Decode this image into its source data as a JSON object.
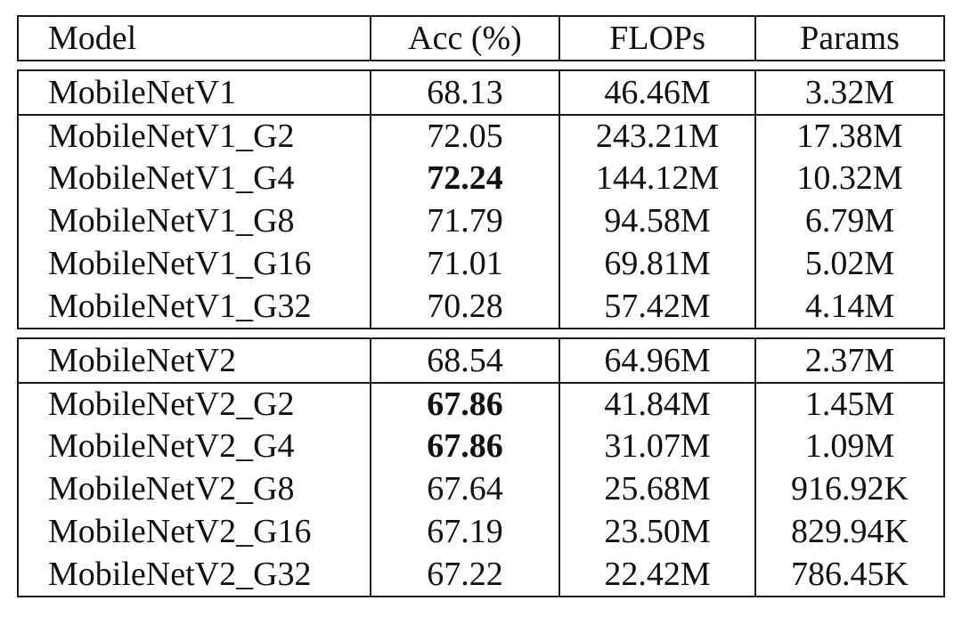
{
  "header": [
    "Model",
    "Acc (%)",
    "FLOPs",
    "Params"
  ],
  "groups": [
    [
      {
        "model": "MobileNetV1",
        "acc": "68.13",
        "flops": "46.46M",
        "params": "3.32M",
        "bold": false,
        "sep": false
      },
      {
        "model": "MobileNetV1_G2",
        "acc": "72.05",
        "flops": "243.21M",
        "params": "17.38M",
        "bold": false,
        "sep": true
      },
      {
        "model": "MobileNetV1_G4",
        "acc": "72.24",
        "flops": "144.12M",
        "params": "10.32M",
        "bold": true,
        "sep": false
      },
      {
        "model": "MobileNetV1_G8",
        "acc": "71.79",
        "flops": "94.58M",
        "params": "6.79M",
        "bold": false,
        "sep": false
      },
      {
        "model": "MobileNetV1_G16",
        "acc": "71.01",
        "flops": "69.81M",
        "params": "5.02M",
        "bold": false,
        "sep": false
      },
      {
        "model": "MobileNetV1_G32",
        "acc": "70.28",
        "flops": "57.42M",
        "params": "4.14M",
        "bold": false,
        "sep": false
      }
    ],
    [
      {
        "model": "MobileNetV2",
        "acc": "68.54",
        "flops": "64.96M",
        "params": "2.37M",
        "bold": false,
        "sep": false
      },
      {
        "model": "MobileNetV2_G2",
        "acc": "67.86",
        "flops": "41.84M",
        "params": "1.45M",
        "bold": true,
        "sep": true
      },
      {
        "model": "MobileNetV2_G4",
        "acc": "67.86",
        "flops": "31.07M",
        "params": "1.09M",
        "bold": true,
        "sep": false
      },
      {
        "model": "MobileNetV2_G8",
        "acc": "67.64",
        "flops": "25.68M",
        "params": "916.92K",
        "bold": false,
        "sep": false
      },
      {
        "model": "MobileNetV2_G16",
        "acc": "67.19",
        "flops": "23.50M",
        "params": "829.94K",
        "bold": false,
        "sep": false
      },
      {
        "model": "MobileNetV2_G32",
        "acc": "67.22",
        "flops": "22.42M",
        "params": "786.45K",
        "bold": false,
        "sep": false
      }
    ]
  ]
}
